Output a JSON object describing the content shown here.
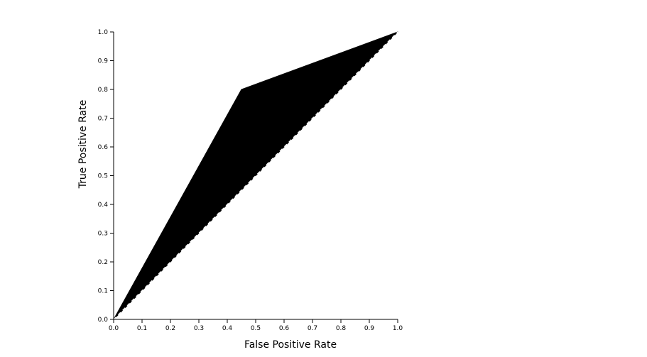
{
  "chart_data": {
    "type": "area",
    "title": "",
    "xlabel": "False Positive Rate",
    "ylabel": "True Positive Rate",
    "xlim": [
      0.0,
      1.0
    ],
    "ylim": [
      0.0,
      1.0
    ],
    "x_ticks": [
      "0.0",
      "0.1",
      "0.2",
      "0.3",
      "0.4",
      "0.5",
      "0.6",
      "0.7",
      "0.8",
      "0.9",
      "1.0"
    ],
    "y_ticks": [
      "0.0",
      "0.1",
      "0.2",
      "0.3",
      "0.4",
      "0.5",
      "0.6",
      "0.7",
      "0.8",
      "0.9",
      "1.0"
    ],
    "series": [
      {
        "x": [
          0.0,
          0.45,
          1.0
        ],
        "y": [
          0.0,
          0.8,
          1.0
        ],
        "fill": "#000000"
      }
    ],
    "baseline": {
      "x": [
        0.0,
        1.0
      ],
      "y": [
        0.0,
        1.0
      ],
      "style": "dashed"
    },
    "grid": false,
    "colors": {
      "fill": "#000000",
      "axis": "#000000",
      "background": "#ffffff"
    }
  }
}
